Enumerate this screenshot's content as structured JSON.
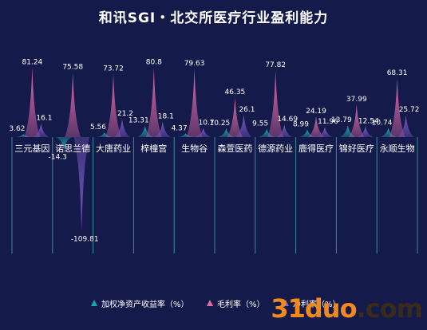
{
  "title": "和讯SGI・北交所医疗行业盈利能力",
  "colors": {
    "background": "#141a4a",
    "roe": "#1fa3b0",
    "gross": "#e06aa8",
    "net": "#7d5cc8",
    "axis": "#3fc1c9",
    "text": "#ffffff"
  },
  "chart_data": {
    "type": "bar",
    "categories": [
      "三元基因",
      "诺思兰德",
      "大唐药业",
      "梓橦宫",
      "生物谷",
      "森萱医药",
      "德源药业",
      "鹿得医疗",
      "锦好医疗",
      "永顺生物"
    ],
    "series": [
      {
        "name": "加权净资产收益率（%）",
        "values": [
          3.62,
          -14.3,
          5.56,
          13.31,
          4.37,
          10.25,
          9.55,
          8.99,
          13.79,
          10.74
        ]
      },
      {
        "name": "毛利率（%）",
        "values": [
          81.24,
          75.58,
          73.72,
          80.8,
          79.63,
          46.35,
          77.82,
          24.19,
          37.99,
          68.31
        ]
      },
      {
        "name": "净利率（%）",
        "values": [
          16.1,
          -109.81,
          21.2,
          18.1,
          10.7,
          26.1,
          14.69,
          11.96,
          12.54,
          25.72
        ]
      }
    ],
    "legend_position": "bottom",
    "grid": false
  },
  "watermark": {
    "main": "31duo",
    "suffix": ".com"
  }
}
